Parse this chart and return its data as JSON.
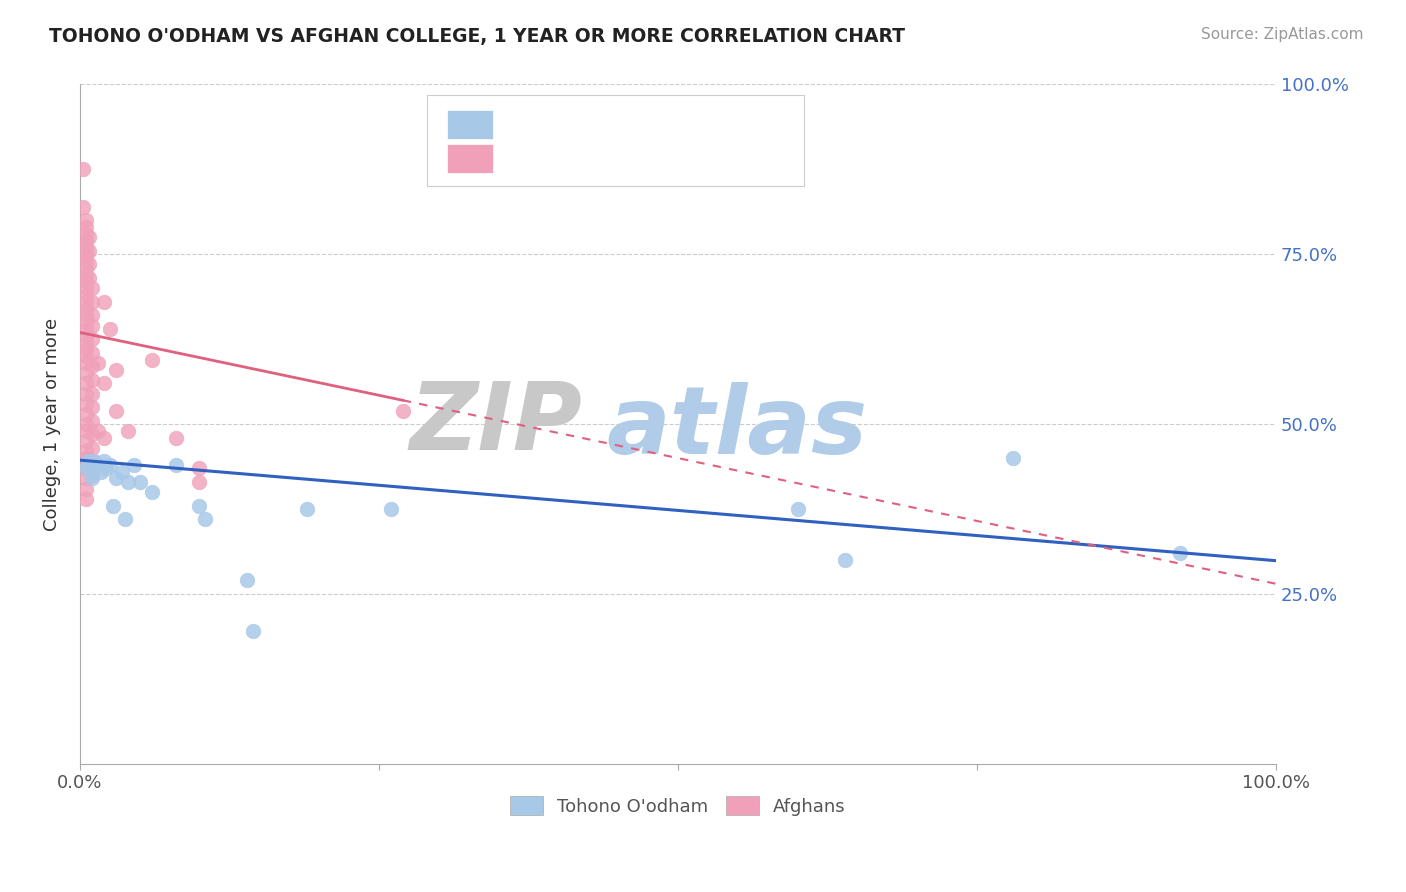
{
  "title": "TOHONO O'ODHAM VS AFGHAN COLLEGE, 1 YEAR OR MORE CORRELATION CHART",
  "source_text": "Source: ZipAtlas.com",
  "ylabel": "College, 1 year or more",
  "legend_blue_label": "Tohono O'odham",
  "legend_pink_label": "Afghans",
  "blue_color": "#a8c8e8",
  "pink_color": "#f0a0b8",
  "blue_line_color": "#3060c0",
  "pink_line_color": "#e06080",
  "zip_color": "#c8c8c8",
  "atlas_color": "#b0cce8",
  "blue_dots": [
    [
      0.005,
      0.435
    ],
    [
      0.007,
      0.445
    ],
    [
      0.01,
      0.43
    ],
    [
      0.01,
      0.42
    ],
    [
      0.012,
      0.445
    ],
    [
      0.015,
      0.44
    ],
    [
      0.018,
      0.43
    ],
    [
      0.02,
      0.445
    ],
    [
      0.022,
      0.435
    ],
    [
      0.025,
      0.44
    ],
    [
      0.028,
      0.38
    ],
    [
      0.03,
      0.42
    ],
    [
      0.035,
      0.43
    ],
    [
      0.038,
      0.36
    ],
    [
      0.04,
      0.415
    ],
    [
      0.045,
      0.44
    ],
    [
      0.05,
      0.415
    ],
    [
      0.06,
      0.4
    ],
    [
      0.08,
      0.44
    ],
    [
      0.1,
      0.38
    ],
    [
      0.105,
      0.36
    ],
    [
      0.14,
      0.27
    ],
    [
      0.145,
      0.195
    ],
    [
      0.19,
      0.375
    ],
    [
      0.26,
      0.375
    ],
    [
      0.6,
      0.375
    ],
    [
      0.64,
      0.3
    ],
    [
      0.78,
      0.45
    ],
    [
      0.92,
      0.31
    ]
  ],
  "pink_dots": [
    [
      0.003,
      0.875
    ],
    [
      0.003,
      0.82
    ],
    [
      0.005,
      0.8
    ],
    [
      0.005,
      0.79
    ],
    [
      0.005,
      0.78
    ],
    [
      0.005,
      0.77
    ],
    [
      0.005,
      0.76
    ],
    [
      0.005,
      0.75
    ],
    [
      0.005,
      0.74
    ],
    [
      0.005,
      0.73
    ],
    [
      0.005,
      0.72
    ],
    [
      0.005,
      0.71
    ],
    [
      0.005,
      0.7
    ],
    [
      0.005,
      0.69
    ],
    [
      0.005,
      0.68
    ],
    [
      0.005,
      0.67
    ],
    [
      0.005,
      0.66
    ],
    [
      0.005,
      0.65
    ],
    [
      0.005,
      0.64
    ],
    [
      0.005,
      0.63
    ],
    [
      0.005,
      0.62
    ],
    [
      0.005,
      0.61
    ],
    [
      0.005,
      0.6
    ],
    [
      0.005,
      0.59
    ],
    [
      0.005,
      0.575
    ],
    [
      0.005,
      0.56
    ],
    [
      0.005,
      0.545
    ],
    [
      0.005,
      0.53
    ],
    [
      0.005,
      0.515
    ],
    [
      0.005,
      0.5
    ],
    [
      0.005,
      0.49
    ],
    [
      0.005,
      0.475
    ],
    [
      0.005,
      0.46
    ],
    [
      0.005,
      0.45
    ],
    [
      0.005,
      0.435
    ],
    [
      0.005,
      0.42
    ],
    [
      0.005,
      0.405
    ],
    [
      0.005,
      0.39
    ],
    [
      0.008,
      0.775
    ],
    [
      0.008,
      0.755
    ],
    [
      0.008,
      0.735
    ],
    [
      0.008,
      0.715
    ],
    [
      0.01,
      0.7
    ],
    [
      0.01,
      0.68
    ],
    [
      0.01,
      0.66
    ],
    [
      0.01,
      0.645
    ],
    [
      0.01,
      0.625
    ],
    [
      0.01,
      0.605
    ],
    [
      0.01,
      0.585
    ],
    [
      0.01,
      0.565
    ],
    [
      0.01,
      0.545
    ],
    [
      0.01,
      0.525
    ],
    [
      0.01,
      0.505
    ],
    [
      0.01,
      0.485
    ],
    [
      0.01,
      0.465
    ],
    [
      0.01,
      0.445
    ],
    [
      0.01,
      0.425
    ],
    [
      0.015,
      0.59
    ],
    [
      0.015,
      0.49
    ],
    [
      0.02,
      0.68
    ],
    [
      0.02,
      0.56
    ],
    [
      0.02,
      0.48
    ],
    [
      0.025,
      0.64
    ],
    [
      0.03,
      0.58
    ],
    [
      0.03,
      0.52
    ],
    [
      0.04,
      0.49
    ],
    [
      0.06,
      0.595
    ],
    [
      0.08,
      0.48
    ],
    [
      0.1,
      0.435
    ],
    [
      0.1,
      0.415
    ],
    [
      0.27,
      0.52
    ]
  ],
  "xlim": [
    0.0,
    1.0
  ],
  "ylim": [
    0.0,
    1.0
  ],
  "pink_line_solid_end": 0.27,
  "blue_line_intercept": 0.447,
  "blue_line_slope": -0.148,
  "pink_line_intercept": 0.635,
  "pink_line_slope": -0.37
}
